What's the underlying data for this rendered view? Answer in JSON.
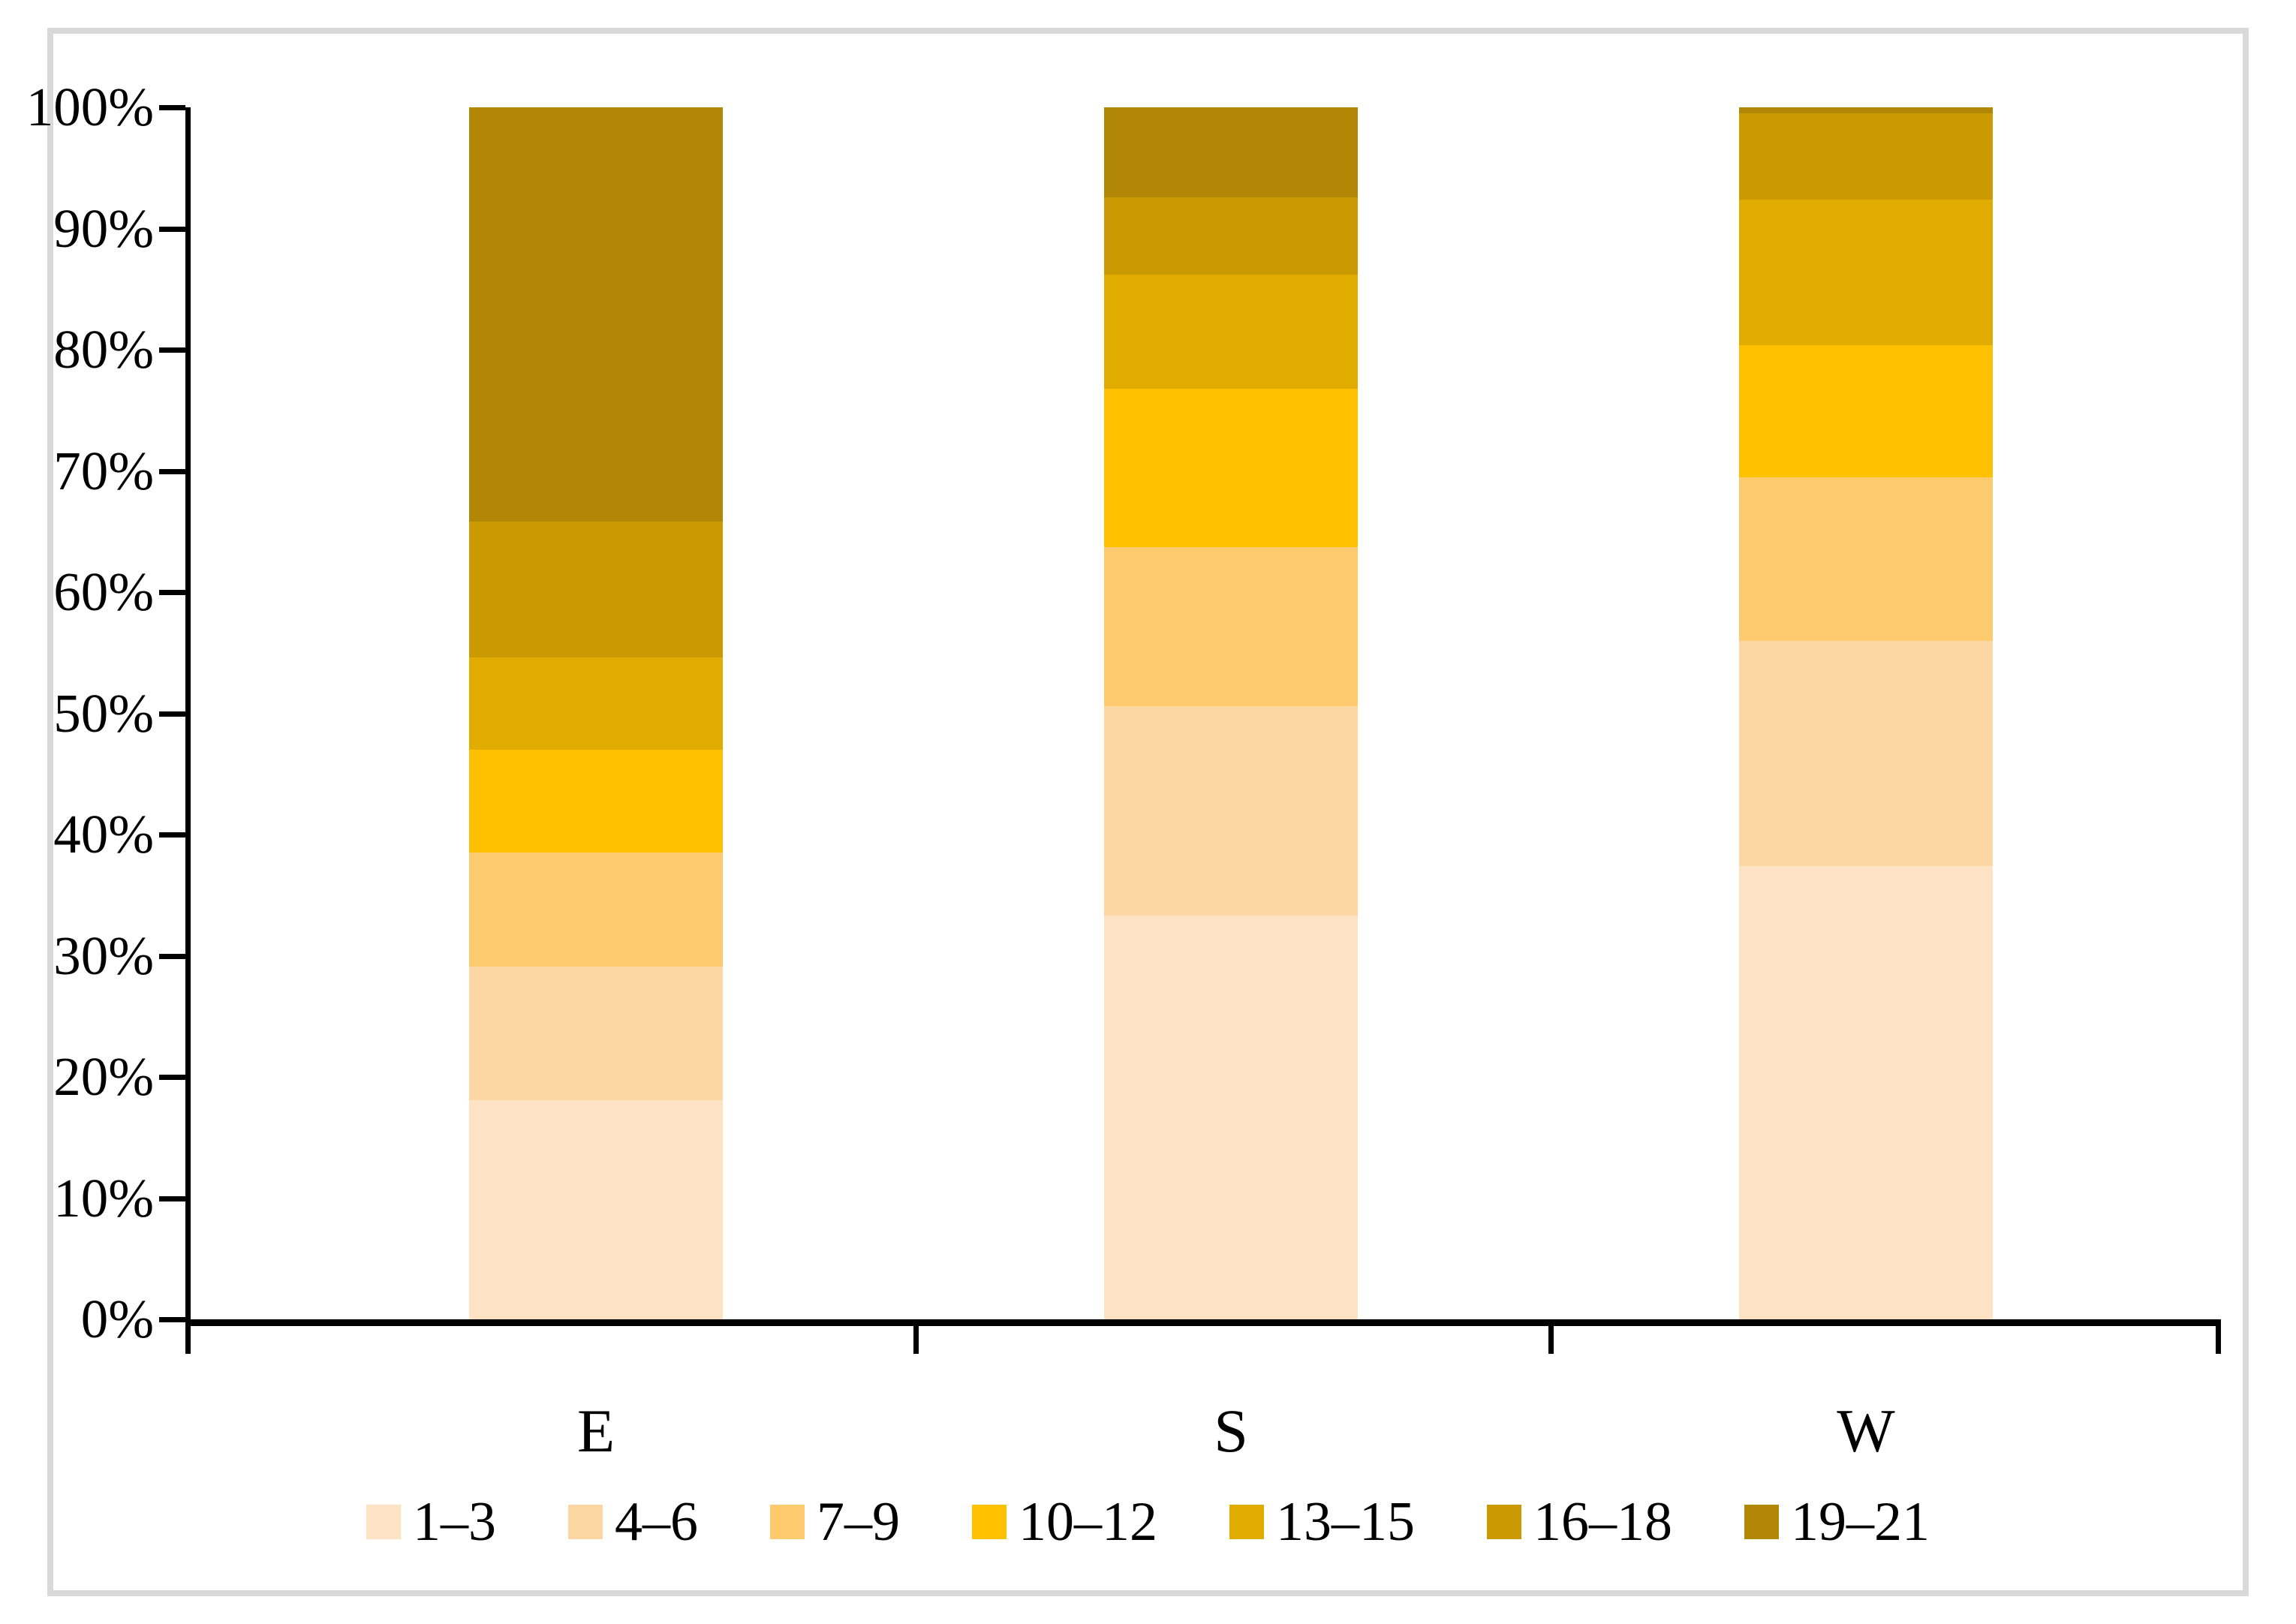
{
  "chart_data": {
    "type": "bar",
    "variant": "stacked-100-percent-column",
    "title": "",
    "xlabel": "",
    "ylabel": "",
    "grid": false,
    "legend_position": "bottom",
    "categories": [
      "E",
      "S",
      "W"
    ],
    "series": [
      {
        "name": "1–3",
        "color": "#FDE3C3",
        "values": [
          18.1,
          33.3,
          37.4
        ]
      },
      {
        "name": "4–6",
        "color": "#FCD7A1",
        "values": [
          11.0,
          17.3,
          18.6
        ]
      },
      {
        "name": "7–9",
        "color": "#FDCA6E",
        "values": [
          9.4,
          13.1,
          13.5
        ]
      },
      {
        "name": "10–12",
        "color": "#FFC000",
        "values": [
          8.5,
          13.1,
          10.9
        ]
      },
      {
        "name": "13–15",
        "color": "#E0AC00",
        "values": [
          7.6,
          9.4,
          12.0
        ]
      },
      {
        "name": "16–18",
        "color": "#CB9902",
        "values": [
          11.2,
          6.4,
          7.1
        ]
      },
      {
        "name": "19–21",
        "color": "#B28705",
        "values": [
          34.2,
          7.4,
          0.5
        ]
      }
    ],
    "y_axis": {
      "min": 0,
      "max": 100,
      "tick_step": 10,
      "tick_labels": [
        "0%",
        "10%",
        "20%",
        "30%",
        "40%",
        "50%",
        "60%",
        "70%",
        "80%",
        "90%",
        "100%"
      ]
    }
  },
  "colors": {
    "axis": "#000000",
    "frame_border": "#D9D9D9",
    "background": "#FFFFFF",
    "text": "#000000"
  }
}
